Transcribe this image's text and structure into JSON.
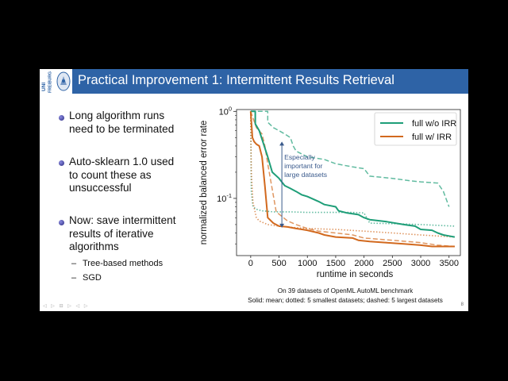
{
  "slide": {
    "title": "Practical Improvement 1: Intermittent Results Retrieval",
    "logo": {
      "text": "UNI FREIBURG"
    },
    "bullets": [
      {
        "lines": [
          "Long algorithm runs",
          "need to be terminated"
        ]
      },
      {
        "lines": [
          "Auto-sklearn 1.0 used",
          "to count these as",
          "unsuccessful"
        ]
      },
      {
        "lines": [
          "Now: save intermittent",
          "results of iterative",
          "algorithms"
        ]
      }
    ],
    "sub_bullets": [
      "Tree-based methods",
      "SGD"
    ],
    "sub_marker": "–",
    "captions": [
      "On 39 datasets of OpenML AutoML benchmark",
      "Solid: mean; dotted: 5 smallest datasets; dashed: 5 largest datasets"
    ],
    "page_number": "8",
    "nav_icons": "◁ ▷ ⊟ ▷ ◁ ▷"
  },
  "chart_data": {
    "type": "line",
    "xlabel": "runtime in seconds",
    "ylabel": "normalized balanced error rate",
    "y_scale": "log",
    "xlim": [
      -250,
      3700
    ],
    "ylim": [
      0.022,
      1.05
    ],
    "x_ticks": [
      0,
      500,
      1000,
      1500,
      2000,
      2500,
      3000,
      3500
    ],
    "y_ticks": [
      {
        "value": 1,
        "label": "10^0"
      },
      {
        "value": 0.1,
        "label": "10^-1"
      }
    ],
    "legend_position": "top-right",
    "legend": [
      {
        "label": "full w/o IRR",
        "color": "#1e9e78"
      },
      {
        "label": "full w/ IRR",
        "color": "#d2691e"
      }
    ],
    "annotation": {
      "text": [
        "Especially",
        "important for",
        "large datasets"
      ],
      "x": 550,
      "y_top": 0.45,
      "y_bottom": 0.046,
      "color": "#3a5a8c"
    },
    "series": [
      {
        "name": "full w/o IRR",
        "style": "solid",
        "color": "#1e9e78",
        "x": [
          0,
          80,
          80,
          150,
          200,
          250,
          300,
          380,
          500,
          600,
          700,
          800,
          900,
          1000,
          1200,
          1300,
          1500,
          1550,
          1700,
          1900,
          2000,
          2100,
          2400,
          2700,
          2900,
          3000,
          3200,
          3300,
          3400,
          3500,
          3600
        ],
        "y": [
          1.0,
          1.0,
          0.72,
          0.6,
          0.48,
          0.38,
          0.3,
          0.2,
          0.17,
          0.14,
          0.13,
          0.12,
          0.11,
          0.105,
          0.092,
          0.085,
          0.08,
          0.072,
          0.068,
          0.065,
          0.06,
          0.057,
          0.054,
          0.05,
          0.048,
          0.044,
          0.043,
          0.04,
          0.038,
          0.037,
          0.036
        ]
      },
      {
        "name": "full w/ IRR",
        "style": "solid",
        "color": "#d2691e",
        "x": [
          0,
          30,
          60,
          100,
          150,
          200,
          250,
          300,
          400,
          500,
          650,
          800,
          1000,
          1200,
          1300,
          1500,
          1800,
          1900,
          2100,
          2400,
          2700,
          3000,
          3200,
          3500,
          3600
        ],
        "y": [
          1.0,
          0.5,
          0.45,
          0.42,
          0.4,
          0.3,
          0.14,
          0.06,
          0.052,
          0.048,
          0.047,
          0.045,
          0.043,
          0.04,
          0.038,
          0.036,
          0.035,
          0.033,
          0.032,
          0.031,
          0.03,
          0.029,
          0.028,
          0.028,
          0.028
        ]
      },
      {
        "name": "",
        "style": "dashed",
        "color": "#1e9e78",
        "x": [
          0,
          300,
          300,
          400,
          500,
          600,
          700,
          750,
          800,
          1000,
          1300,
          1500,
          1800,
          2000,
          2100,
          2300,
          2500,
          2800,
          3000,
          3300,
          3400,
          3500
        ],
        "y": [
          1.0,
          1.0,
          0.75,
          0.65,
          0.6,
          0.55,
          0.5,
          0.4,
          0.35,
          0.3,
          0.28,
          0.25,
          0.23,
          0.22,
          0.18,
          0.175,
          0.17,
          0.16,
          0.155,
          0.15,
          0.12,
          0.08
        ]
      },
      {
        "name": "",
        "style": "dashed",
        "color": "#d2691e",
        "x": [
          0,
          100,
          200,
          250,
          300,
          450,
          650,
          800,
          1000,
          1200,
          1500,
          1800,
          2000,
          2500,
          3000,
          3300,
          3600
        ],
        "y": [
          1.0,
          0.65,
          0.55,
          0.4,
          0.25,
          0.07,
          0.055,
          0.05,
          0.045,
          0.042,
          0.04,
          0.038,
          0.035,
          0.033,
          0.031,
          0.029,
          0.028
        ]
      },
      {
        "name": "",
        "style": "dotted",
        "color": "#1e9e78",
        "x": [
          0,
          10,
          40,
          100,
          200,
          400,
          700,
          1000,
          1500,
          1800,
          2000,
          2100,
          2600,
          3000,
          3300,
          3600
        ],
        "y": [
          1.0,
          0.12,
          0.08,
          0.075,
          0.072,
          0.07,
          0.07,
          0.069,
          0.069,
          0.069,
          0.068,
          0.052,
          0.051,
          0.05,
          0.049,
          0.048
        ]
      },
      {
        "name": "",
        "style": "dotted",
        "color": "#d2691e",
        "x": [
          0,
          10,
          40,
          100,
          150,
          300,
          500,
          800,
          1000,
          1500,
          2000,
          2500,
          3000,
          3600
        ],
        "y": [
          1.0,
          0.2,
          0.09,
          0.06,
          0.055,
          0.05,
          0.048,
          0.046,
          0.045,
          0.044,
          0.042,
          0.04,
          0.038,
          0.036
        ]
      }
    ]
  }
}
